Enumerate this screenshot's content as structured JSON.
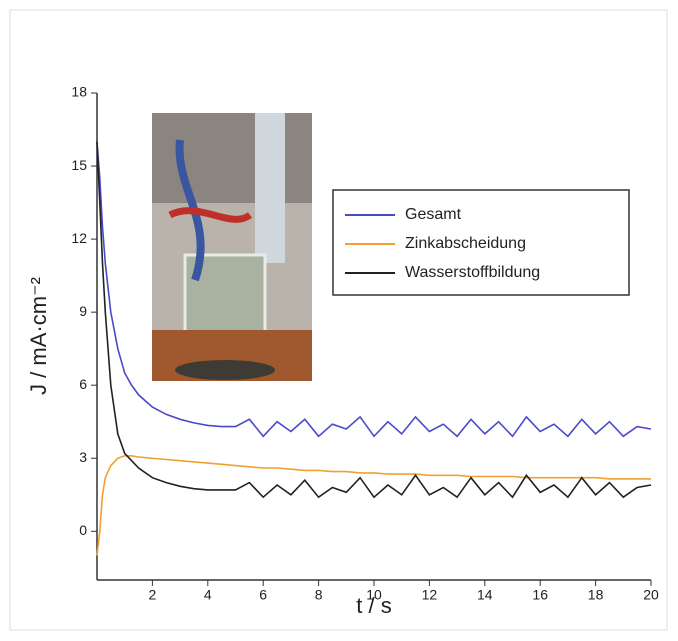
{
  "chart_data": {
    "type": "line",
    "xlabel": "t / s",
    "ylabel": "J / mA·cm⁻²",
    "x": [
      0,
      0.1,
      0.2,
      0.3,
      0.5,
      0.75,
      1,
      1.25,
      1.5,
      2,
      2.5,
      3,
      3.5,
      4,
      4.5,
      5,
      5.5,
      6,
      6.5,
      7,
      7.5,
      8,
      8.5,
      9,
      9.5,
      10,
      10.5,
      11,
      11.5,
      12,
      12.5,
      13,
      13.5,
      14,
      14.5,
      15,
      15.5,
      16,
      16.5,
      17,
      17.5,
      18,
      18.5,
      19,
      19.5,
      20
    ],
    "series": [
      {
        "name": "Gesamt",
        "color": "#4a4ac8",
        "values": [
          16,
          14.5,
          12.5,
          11,
          9,
          7.5,
          6.5,
          6,
          5.6,
          5.1,
          4.8,
          4.6,
          4.45,
          4.35,
          4.3,
          4.3,
          4.6,
          3.9,
          4.5,
          4.1,
          4.6,
          3.9,
          4.4,
          4.2,
          4.7,
          3.9,
          4.5,
          4.0,
          4.7,
          4.1,
          4.4,
          3.9,
          4.6,
          4.0,
          4.5,
          3.9,
          4.7,
          4.1,
          4.4,
          3.9,
          4.6,
          4.0,
          4.5,
          3.9,
          4.3,
          4.2
        ]
      },
      {
        "name": "Zinkabscheidung",
        "color": "#f0a030",
        "values": [
          -1,
          0,
          1.5,
          2.2,
          2.7,
          3.0,
          3.1,
          3.1,
          3.05,
          3.0,
          2.95,
          2.9,
          2.85,
          2.8,
          2.75,
          2.7,
          2.65,
          2.6,
          2.6,
          2.55,
          2.5,
          2.5,
          2.45,
          2.45,
          2.4,
          2.4,
          2.35,
          2.35,
          2.35,
          2.3,
          2.3,
          2.3,
          2.25,
          2.25,
          2.25,
          2.25,
          2.2,
          2.2,
          2.2,
          2.2,
          2.2,
          2.2,
          2.15,
          2.15,
          2.15,
          2.15
        ]
      },
      {
        "name": "Wasserstoffbildung",
        "color": "#222222",
        "values": [
          16,
          13.5,
          11,
          9,
          6,
          4,
          3.2,
          2.9,
          2.6,
          2.2,
          2.0,
          1.85,
          1.75,
          1.7,
          1.7,
          1.7,
          2.0,
          1.4,
          1.9,
          1.5,
          2.1,
          1.4,
          1.8,
          1.6,
          2.2,
          1.4,
          1.9,
          1.5,
          2.3,
          1.5,
          1.8,
          1.4,
          2.2,
          1.5,
          2.0,
          1.4,
          2.3,
          1.6,
          1.9,
          1.4,
          2.2,
          1.5,
          2.0,
          1.4,
          1.8,
          1.9
        ]
      }
    ],
    "xlim": [
      0,
      20
    ],
    "xticks": [
      2,
      4,
      6,
      8,
      10,
      12,
      14,
      16,
      18,
      20
    ],
    "ylim": [
      -2,
      18
    ],
    "yticks": [
      0,
      3,
      6,
      9,
      12,
      15,
      18
    ]
  }
}
